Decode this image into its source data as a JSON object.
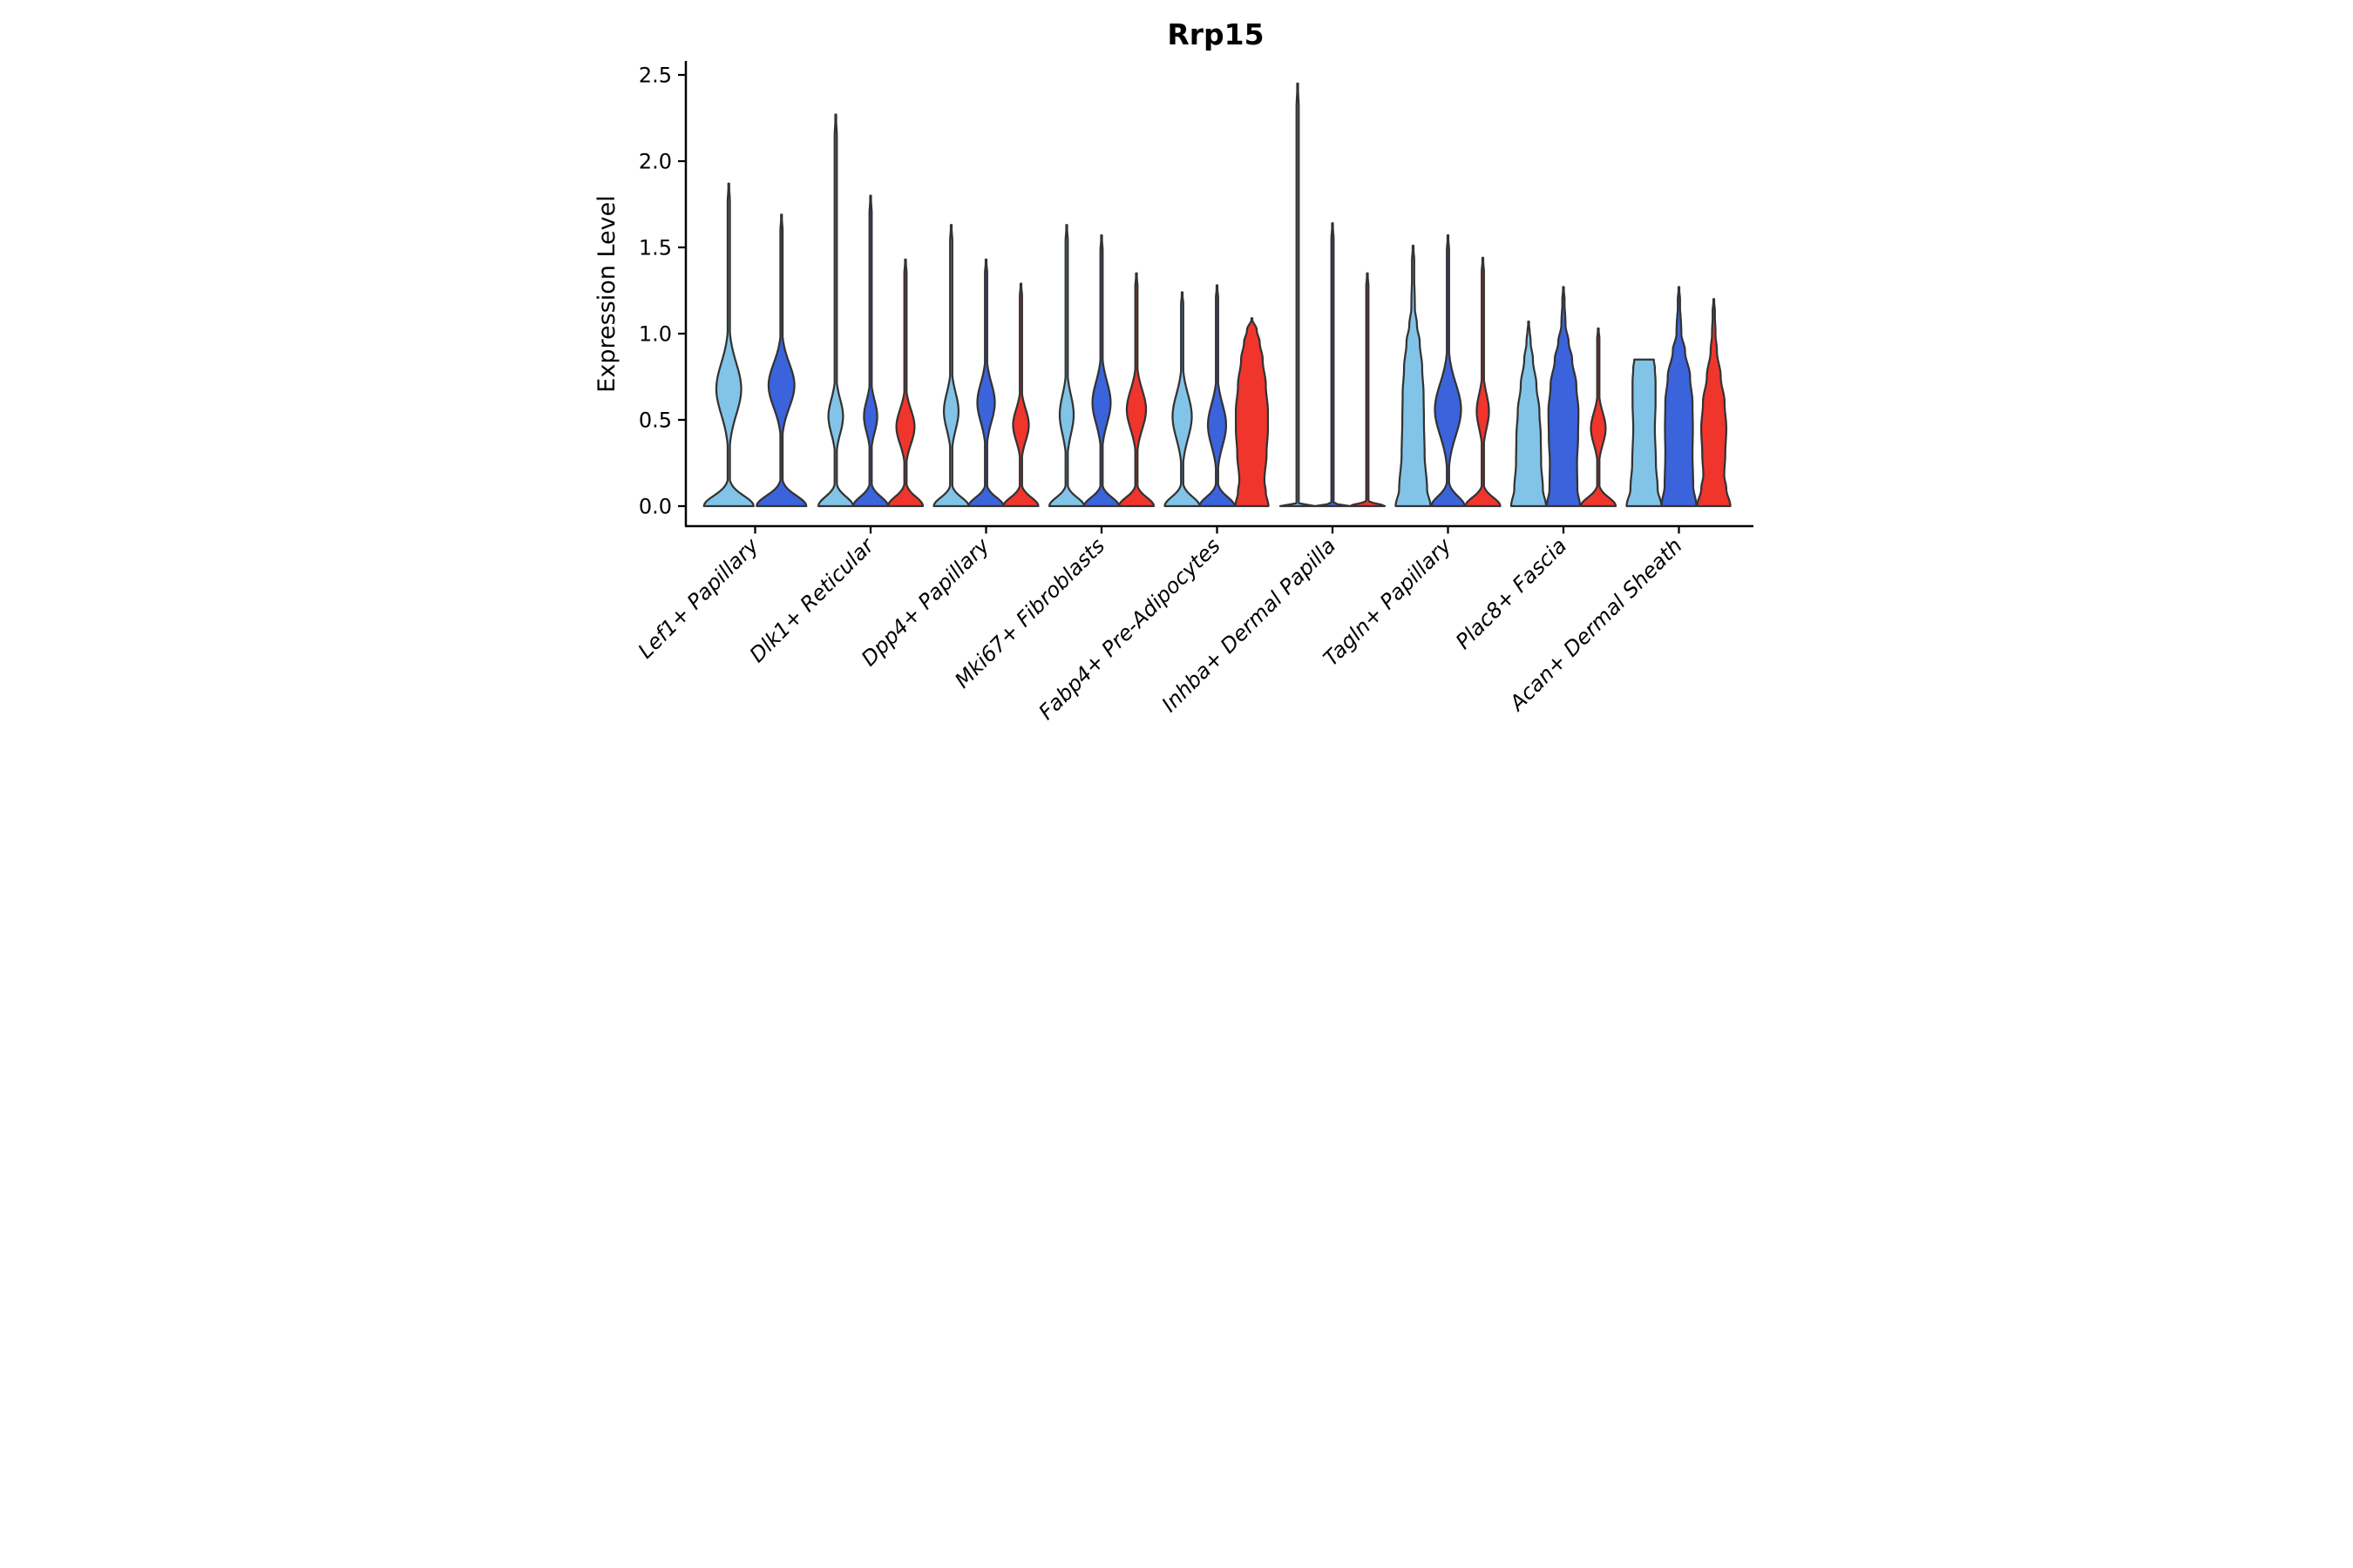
{
  "title": "Rrp15",
  "y_axis": {
    "label": "Expression Level",
    "ticks": [
      "0.0",
      "0.5",
      "1.0",
      "1.5",
      "2.0",
      "2.5"
    ],
    "tick_values": [
      0.0,
      0.5,
      1.0,
      1.5,
      2.0,
      2.5
    ]
  },
  "colors": {
    "light_blue": "#82C4E8",
    "blue": "#3B63DB",
    "red": "#F0352D",
    "outline": "#333333",
    "axis": "#000000"
  },
  "chart_data": {
    "type": "violin",
    "title": "Rrp15",
    "xlabel": "",
    "ylabel": "Expression Level",
    "ylim": [
      0.0,
      2.576
    ],
    "grid": false,
    "legend": "none",
    "categories": [
      "Lef1+ Papillary",
      "Dlk1+ Reticular",
      "Dpp4+ Papillary",
      "Mki67+ Fibroblasts",
      "Fabp4+ Pre-Adipocytes",
      "Inhba+ Dermal Papilla",
      "Tagln+ Papillary",
      "Plac8+ Fascia",
      "Acan+ Dermal Sheath"
    ],
    "series": [
      {
        "color_key": "light_blue",
        "max_values": [
          1.87,
          2.27,
          1.63,
          1.63,
          1.24,
          2.45,
          1.51,
          1.07,
          0.85
        ]
      },
      {
        "color_key": "blue",
        "max_values": [
          1.69,
          1.8,
          1.43,
          1.57,
          1.28,
          1.64,
          1.57,
          1.27,
          1.27
        ]
      },
      {
        "color_key": "red",
        "max_values": [
          null,
          1.43,
          1.29,
          1.35,
          1.09,
          1.35,
          1.44,
          1.03,
          1.2
        ]
      }
    ],
    "violins": [
      {
        "ci": 0,
        "color_key": "light_blue",
        "dx": -60.5,
        "hw": 57,
        "max": 1.87,
        "base": [
          1.0,
          0.085
        ],
        "bulges": [
          [
            0.68,
            0.21,
            0.5
          ]
        ]
      },
      {
        "ci": 0,
        "color_key": "blue",
        "dx": 60.5,
        "hw": 57,
        "max": 1.69,
        "base": [
          1.0,
          0.085
        ],
        "bulges": [
          [
            0.7,
            0.18,
            0.52
          ]
        ]
      },
      {
        "ci": 1,
        "color_key": "light_blue",
        "dx": -80,
        "hw": 40,
        "max": 2.27,
        "base": [
          1.0,
          0.075
        ],
        "bulges": [
          [
            0.52,
            0.14,
            0.42
          ]
        ]
      },
      {
        "ci": 1,
        "color_key": "blue",
        "dx": 0,
        "hw": 40,
        "max": 1.8,
        "base": [
          1.0,
          0.075
        ],
        "bulges": [
          [
            0.52,
            0.13,
            0.38
          ]
        ]
      },
      {
        "ci": 1,
        "color_key": "red",
        "dx": 80,
        "hw": 40,
        "max": 1.43,
        "base": [
          1.0,
          0.075
        ],
        "bulges": [
          [
            0.46,
            0.14,
            0.52
          ]
        ]
      },
      {
        "ci": 2,
        "color_key": "light_blue",
        "dx": -80,
        "hw": 40,
        "max": 1.63,
        "base": [
          1.0,
          0.07
        ],
        "bulges": [
          [
            0.55,
            0.15,
            0.42
          ]
        ]
      },
      {
        "ci": 2,
        "color_key": "blue",
        "dx": 0,
        "hw": 40,
        "max": 1.43,
        "base": [
          1.0,
          0.07
        ],
        "bulges": [
          [
            0.6,
            0.16,
            0.5
          ]
        ]
      },
      {
        "ci": 2,
        "color_key": "red",
        "dx": 80,
        "hw": 40,
        "max": 1.29,
        "base": [
          1.0,
          0.07
        ],
        "bulges": [
          [
            0.47,
            0.13,
            0.45
          ]
        ]
      },
      {
        "ci": 3,
        "color_key": "light_blue",
        "dx": -80,
        "hw": 40,
        "max": 1.63,
        "base": [
          1.0,
          0.07
        ],
        "bulges": [
          [
            0.53,
            0.16,
            0.4
          ]
        ]
      },
      {
        "ci": 3,
        "color_key": "blue",
        "dx": 0,
        "hw": 40,
        "max": 1.57,
        "base": [
          1.0,
          0.07
        ],
        "bulges": [
          [
            0.6,
            0.17,
            0.52
          ]
        ]
      },
      {
        "ci": 3,
        "color_key": "red",
        "dx": 80,
        "hw": 40,
        "max": 1.35,
        "base": [
          1.0,
          0.07
        ],
        "bulges": [
          [
            0.56,
            0.16,
            0.55
          ]
        ]
      },
      {
        "ci": 4,
        "color_key": "light_blue",
        "dx": -80,
        "hw": 40,
        "max": 1.24,
        "base": [
          1.0,
          0.075
        ],
        "bulges": [
          [
            0.52,
            0.18,
            0.55
          ]
        ]
      },
      {
        "ci": 4,
        "color_key": "blue",
        "dx": 0,
        "hw": 40,
        "max": 1.28,
        "base": [
          1.0,
          0.075
        ],
        "bulges": [
          [
            0.47,
            0.17,
            0.52
          ]
        ]
      },
      {
        "ci": 4,
        "color_key": "red",
        "dx": 80,
        "hw": 40,
        "max": 1.09,
        "base": [
          0.95,
          0.09
        ],
        "points": [
          [
            0,
            0.95
          ],
          [
            0.08,
            0.8
          ],
          [
            0.15,
            0.72
          ],
          [
            0.3,
            0.84
          ],
          [
            0.45,
            0.92
          ],
          [
            0.55,
            0.92
          ],
          [
            0.7,
            0.8
          ],
          [
            0.85,
            0.62
          ],
          [
            0.95,
            0.45
          ],
          [
            1.02,
            0.28
          ],
          [
            1.09,
            0.0
          ]
        ]
      },
      {
        "ci": 5,
        "color_key": "light_blue",
        "dx": -80,
        "hw": 40,
        "max": 2.45,
        "base": [
          1.0,
          0.01
        ],
        "bulges": []
      },
      {
        "ci": 5,
        "color_key": "blue",
        "dx": 0,
        "hw": 40,
        "max": 1.64,
        "base": [
          1.0,
          0.01
        ],
        "bulges": []
      },
      {
        "ci": 5,
        "color_key": "red",
        "dx": 80,
        "hw": 40,
        "max": 1.35,
        "base": [
          1.0,
          0.018
        ],
        "bulges": []
      },
      {
        "ci": 6,
        "color_key": "light_blue",
        "dx": -80,
        "hw": 40,
        "max": 1.51,
        "points": [
          [
            0,
            1.0
          ],
          [
            0.1,
            0.8
          ],
          [
            0.3,
            0.66
          ],
          [
            0.5,
            0.62
          ],
          [
            0.65,
            0.6
          ],
          [
            0.8,
            0.52
          ],
          [
            0.95,
            0.38
          ],
          [
            1.05,
            0.22
          ],
          [
            1.15,
            0.1
          ],
          [
            1.51,
            0.0
          ]
        ]
      },
      {
        "ci": 6,
        "color_key": "blue",
        "dx": 0,
        "hw": 40,
        "max": 1.57,
        "base": [
          0.95,
          0.08
        ],
        "bulges": [
          [
            0.56,
            0.21,
            0.75
          ]
        ]
      },
      {
        "ci": 6,
        "color_key": "red",
        "dx": 80,
        "hw": 40,
        "max": 1.44,
        "base": [
          1.0,
          0.07
        ],
        "bulges": [
          [
            0.55,
            0.14,
            0.35
          ]
        ]
      },
      {
        "ci": 7,
        "color_key": "light_blue",
        "dx": -80,
        "hw": 40,
        "max": 1.07,
        "points": [
          [
            0,
            1.0
          ],
          [
            0.1,
            0.82
          ],
          [
            0.25,
            0.72
          ],
          [
            0.4,
            0.7
          ],
          [
            0.55,
            0.62
          ],
          [
            0.7,
            0.45
          ],
          [
            0.85,
            0.25
          ],
          [
            0.95,
            0.12
          ],
          [
            1.07,
            0.0
          ]
        ]
      },
      {
        "ci": 7,
        "color_key": "blue",
        "dx": 0,
        "hw": 40,
        "max": 1.27,
        "points": [
          [
            0,
            0.95
          ],
          [
            0.1,
            0.8
          ],
          [
            0.25,
            0.78
          ],
          [
            0.4,
            0.84
          ],
          [
            0.55,
            0.86
          ],
          [
            0.7,
            0.74
          ],
          [
            0.85,
            0.5
          ],
          [
            0.95,
            0.3
          ],
          [
            1.05,
            0.12
          ],
          [
            1.27,
            0.0
          ]
        ]
      },
      {
        "ci": 7,
        "color_key": "red",
        "dx": 80,
        "hw": 40,
        "max": 1.03,
        "base": [
          1.0,
          0.07
        ],
        "bulges": [
          [
            0.45,
            0.13,
            0.42
          ]
        ]
      },
      {
        "ci": 8,
        "color_key": "light_blue",
        "dx": -80,
        "hw": 40,
        "max": 0.85,
        "flat_top": true,
        "points": [
          [
            0,
            1.0
          ],
          [
            0.1,
            0.78
          ],
          [
            0.25,
            0.68
          ],
          [
            0.45,
            0.62
          ],
          [
            0.6,
            0.66
          ],
          [
            0.72,
            0.66
          ],
          [
            0.8,
            0.62
          ],
          [
            0.85,
            0.56
          ]
        ]
      },
      {
        "ci": 8,
        "color_key": "blue",
        "dx": 0,
        "hw": 40,
        "max": 1.27,
        "points": [
          [
            0,
            1.0
          ],
          [
            0.12,
            0.82
          ],
          [
            0.3,
            0.78
          ],
          [
            0.45,
            0.8
          ],
          [
            0.6,
            0.78
          ],
          [
            0.75,
            0.64
          ],
          [
            0.9,
            0.35
          ],
          [
            1.0,
            0.14
          ],
          [
            1.27,
            0.0
          ]
        ]
      },
      {
        "ci": 8,
        "color_key": "red",
        "dx": 80,
        "hw": 40,
        "max": 1.2,
        "points": [
          [
            0,
            0.95
          ],
          [
            0.1,
            0.72
          ],
          [
            0.18,
            0.6
          ],
          [
            0.3,
            0.66
          ],
          [
            0.45,
            0.72
          ],
          [
            0.6,
            0.62
          ],
          [
            0.75,
            0.4
          ],
          [
            0.9,
            0.18
          ],
          [
            1.0,
            0.1
          ],
          [
            1.2,
            0.0
          ]
        ]
      }
    ]
  }
}
